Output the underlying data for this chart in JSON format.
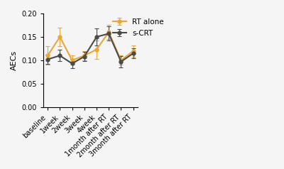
{
  "x_labels": [
    "baseline",
    "1week",
    "2week",
    "3week",
    "4week",
    "1month after RT",
    "2month after RT",
    "3month after RT"
  ],
  "rt_alone_y": [
    0.11,
    0.15,
    0.1,
    0.11,
    0.123,
    0.16,
    0.1,
    0.12
  ],
  "rt_alone_yerr": [
    0.02,
    0.02,
    0.01,
    0.01,
    0.02,
    0.015,
    0.01,
    0.012
  ],
  "scrt_y": [
    0.102,
    0.11,
    0.093,
    0.108,
    0.15,
    0.157,
    0.097,
    0.115
  ],
  "scrt_yerr": [
    0.01,
    0.012,
    0.01,
    0.01,
    0.018,
    0.015,
    0.012,
    0.01
  ],
  "rt_color": "#E8A838",
  "scrt_color": "#4A4A4A",
  "ylabel": "AECs",
  "ylim": [
    0.0,
    0.2
  ],
  "yticks": [
    0.0,
    0.05,
    0.1,
    0.15,
    0.2
  ],
  "legend_labels": [
    "RT alone",
    "s-CRT"
  ],
  "bg_color": "#F5F5F5"
}
